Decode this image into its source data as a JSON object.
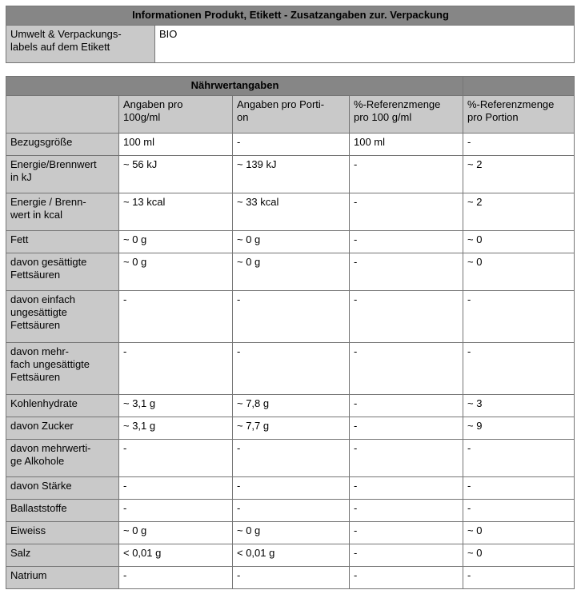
{
  "colors": {
    "title_bar_bg": "#868686",
    "label_cell_bg": "#c9c9c9",
    "grid_border": "#757575",
    "page_bg": "#ffffff",
    "text": "#000000"
  },
  "product_info": {
    "title": "Informationen Produkt, Etikett - Zusatzangaben zur. Verpackung",
    "rows": [
      {
        "label": "Umwelt & Verpackungs-\nlabels auf dem Etikett",
        "value": "BIO"
      }
    ]
  },
  "nutrition_table": {
    "title": "Nährwertangaben",
    "columns": [
      "Angaben pro\n100g/ml",
      "Angaben pro Porti-\non",
      "%-Referenzmenge\npro 100 g/ml",
      "%-Referenzmenge\npro Portion"
    ],
    "rows": [
      {
        "label": "Bezugsgröße",
        "indent": false,
        "values": [
          "100 ml",
          "-",
          "100 ml",
          "-"
        ]
      },
      {
        "label": "Energie/Brennwert\nin kJ",
        "indent": false,
        "values": [
          "~ 56 kJ",
          "~ 139 kJ",
          "-",
          "~ 2"
        ]
      },
      {
        "label": "Energie / Brenn-\nwert in kcal",
        "indent": false,
        "values": [
          "~ 13 kcal",
          "~ 33 kcal",
          "-",
          "~ 2"
        ]
      },
      {
        "label": "Fett",
        "indent": false,
        "values": [
          "~ 0 g",
          "~ 0 g",
          "-",
          "~ 0"
        ]
      },
      {
        "label": "davon gesättigte\nFettsäuren",
        "indent": true,
        "values": [
          "~ 0 g",
          "~ 0 g",
          "-",
          "~ 0"
        ]
      },
      {
        "label": "davon einfach\nungesättigte\nFettsäuren",
        "indent": true,
        "values": [
          "-",
          "-",
          "-",
          "-"
        ]
      },
      {
        "label": "davon mehr-\nfach ungesättigte\nFettsäuren",
        "indent": true,
        "values": [
          "-",
          "-",
          "-",
          "-"
        ]
      },
      {
        "label": "Kohlenhydrate",
        "indent": false,
        "values": [
          "~ 3,1 g",
          "~ 7,8 g",
          "-",
          "~ 3"
        ]
      },
      {
        "label": "davon Zucker",
        "indent": true,
        "values": [
          "~ 3,1 g",
          "~ 7,7 g",
          "-",
          "~ 9"
        ]
      },
      {
        "label": "davon mehrwerti-\nge Alkohole",
        "indent": true,
        "values": [
          "-",
          "-",
          "-",
          "-"
        ]
      },
      {
        "label": "davon Stärke",
        "indent": true,
        "values": [
          "-",
          "-",
          "-",
          "-"
        ]
      },
      {
        "label": "Ballaststoffe",
        "indent": false,
        "values": [
          "-",
          "-",
          "-",
          "-"
        ]
      },
      {
        "label": "Eiweiss",
        "indent": false,
        "values": [
          "~ 0 g",
          "~ 0 g",
          "-",
          "~ 0"
        ]
      },
      {
        "label": "Salz",
        "indent": false,
        "values": [
          "< 0,01 g",
          "< 0,01 g",
          "-",
          "~ 0"
        ]
      },
      {
        "label": "Natrium",
        "indent": false,
        "values": [
          "-",
          "-",
          "-",
          "-"
        ]
      }
    ]
  }
}
